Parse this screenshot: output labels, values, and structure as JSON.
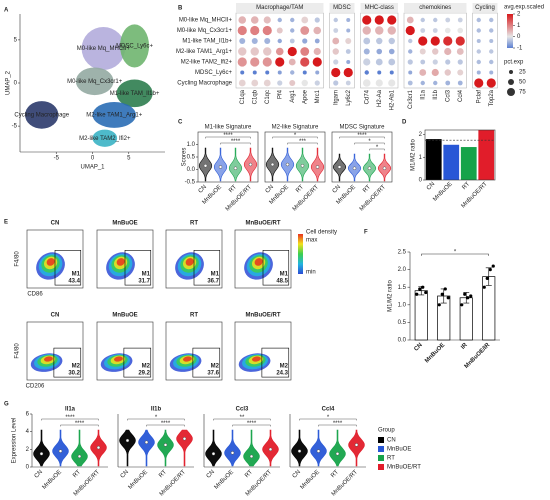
{
  "panel_labels": [
    "A",
    "B",
    "C",
    "D",
    "E",
    "F",
    "G"
  ],
  "group_legend": {
    "title": "Group",
    "names": [
      "CN",
      "MnBuOE",
      "RT",
      "MnBuOE/RT"
    ],
    "colors": [
      "#000000",
      "#2857d6",
      "#16a34a",
      "#e11d2a"
    ]
  },
  "chart_data": [
    {
      "type": "umap",
      "xlabel": "UMAP_1",
      "ylabel": "UMAP_2",
      "xlim": [
        -10,
        10
      ],
      "ylim": [
        -8,
        8
      ],
      "xticks": [
        -5,
        0,
        5
      ],
      "yticks": [
        -5,
        0,
        5
      ],
      "clusters": [
        {
          "name": "M0-like Mq_MHCII+",
          "color": "#b3acdc",
          "x": 1.5,
          "y": 4,
          "rx": 3,
          "ry": 2.5
        },
        {
          "name": "MDSC_Ly6c+",
          "color": "#6fb56f",
          "x": 5.8,
          "y": 4.3,
          "rx": 2,
          "ry": 2.5
        },
        {
          "name": "M0-like Mq_Cx3cr1+",
          "color": "#93aaa2",
          "x": 0.3,
          "y": 0.2,
          "rx": 2.6,
          "ry": 1.6
        },
        {
          "name": "M1-like TAM_Il1b+",
          "color": "#2e7d4f",
          "x": 5.8,
          "y": -1.2,
          "rx": 2.5,
          "ry": 1.6
        },
        {
          "name": "M2-like TAM1_Arg1+",
          "color": "#2a6db5",
          "x": 3,
          "y": -3.7,
          "rx": 3,
          "ry": 1.5
        },
        {
          "name": "M2-like TAM2_Ifi2+",
          "color": "#3bb3c4",
          "x": 1.7,
          "y": -6.4,
          "rx": 1.7,
          "ry": 1
        },
        {
          "name": "Cycling Macrophage",
          "color": "#2b3a6b",
          "x": -7,
          "y": -3.7,
          "rx": 2.3,
          "ry": 1.6
        }
      ]
    },
    {
      "type": "dotplot",
      "rows": [
        "M0-like Mq_MHCII+",
        "M0-like Mq_Cx3cr1+",
        "M1-like TAM_Il1b+",
        "M2-like TAM1_Arg1+",
        "M2-like TAM2_Ifi2+",
        "MDSC_Ly6c+",
        "Cycling Macrophage"
      ],
      "groups": [
        {
          "name": "Macrophage/TAM",
          "genes": [
            "C1qa",
            "C1qb",
            "C1qc",
            "Pf4",
            "Arg1",
            "Apoe",
            "Mrc1"
          ]
        },
        {
          "name": "MDSC",
          "genes": [
            "Itgam",
            "Ly6c2"
          ]
        },
        {
          "name": "MHC-class",
          "genes": [
            "Cd74",
            "H2-Aa",
            "H2-Ab1"
          ]
        },
        {
          "name": "chemokines",
          "genes": [
            "Cx3cr1",
            "Il1a",
            "Il1b",
            "Ccl3",
            "Ccl4"
          ]
        },
        {
          "name": "Cycling",
          "genes": [
            "Pclaf",
            "Top2a"
          ]
        }
      ],
      "values": [
        [
          0.5,
          0.5,
          0.4,
          -0.5,
          -0.5,
          0.2,
          -0.3,
          -0.3,
          -0.5,
          2,
          2,
          2,
          0.5,
          -0.3,
          -0.3,
          -0.2,
          -0.2,
          -0.4,
          -0.4
        ],
        [
          1,
          1,
          1,
          0.3,
          -0.5,
          0.8,
          0.5,
          -0.2,
          -0.5,
          0.5,
          0.5,
          0.5,
          2,
          -0.2,
          -0.2,
          0,
          0,
          -0.4,
          -0.4
        ],
        [
          -0.5,
          -0.5,
          -0.5,
          -0.6,
          -0.3,
          -0.6,
          -0.6,
          0.5,
          0.2,
          -0.3,
          -0.3,
          -0.3,
          -0.3,
          2,
          2,
          1.8,
          1.8,
          -0.4,
          -0.4
        ],
        [
          0.3,
          0.3,
          0.3,
          0.8,
          2,
          1,
          0.5,
          0.3,
          -0.3,
          -0.5,
          -0.6,
          -0.6,
          -0.5,
          0.2,
          0.3,
          0.5,
          0.4,
          -0.3,
          -0.3
        ],
        [
          0.8,
          0.8,
          0.8,
          2,
          0.5,
          1.5,
          2,
          -0.2,
          -0.6,
          -0.2,
          -0.3,
          -0.3,
          -0.3,
          -0.3,
          -0.2,
          -0.3,
          -0.3,
          -0.4,
          -0.4
        ],
        [
          -1,
          -1,
          -1,
          -0.7,
          -0.5,
          -1,
          -0.6,
          2,
          2,
          -1,
          -1,
          -1,
          -0.6,
          0.5,
          0.6,
          0.3,
          0.2,
          -0.5,
          -0.5
        ],
        [
          0.2,
          0.2,
          0.2,
          -0.2,
          0.3,
          0,
          -0.2,
          -0.3,
          -0.2,
          0,
          0,
          0,
          -0.4,
          -0.5,
          -0.5,
          -0.5,
          -0.5,
          2,
          2
        ]
      ],
      "pct": [
        [
          70,
          70,
          65,
          30,
          30,
          60,
          40,
          30,
          25,
          90,
          90,
          90,
          60,
          30,
          30,
          35,
          35,
          30,
          30
        ],
        [
          90,
          90,
          90,
          50,
          30,
          85,
          70,
          35,
          25,
          80,
          80,
          80,
          90,
          35,
          35,
          45,
          45,
          30,
          30
        ],
        [
          50,
          50,
          50,
          30,
          35,
          40,
          35,
          60,
          50,
          60,
          55,
          55,
          30,
          90,
          90,
          90,
          90,
          25,
          25
        ],
        [
          80,
          80,
          80,
          70,
          90,
          85,
          65,
          55,
          35,
          50,
          45,
          45,
          30,
          50,
          55,
          65,
          60,
          30,
          30
        ],
        [
          90,
          90,
          90,
          90,
          60,
          90,
          90,
          40,
          25,
          65,
          60,
          60,
          40,
          35,
          40,
          40,
          40,
          30,
          30
        ],
        [
          25,
          25,
          25,
          25,
          30,
          25,
          25,
          90,
          90,
          30,
          25,
          25,
          25,
          60,
          65,
          55,
          50,
          25,
          25
        ],
        [
          60,
          60,
          60,
          40,
          50,
          55,
          40,
          40,
          35,
          70,
          65,
          65,
          35,
          30,
          30,
          35,
          35,
          90,
          90
        ]
      ],
      "colorbar": {
        "title": "avg.exp.scaled",
        "lim": [
          -1,
          2
        ],
        "ticks": [
          2,
          1,
          0,
          -1
        ],
        "colors": [
          "#5b7fd1",
          "#e6e6e6",
          "#d7191c"
        ]
      },
      "size_legend": {
        "title": "pct.exp",
        "values": [
          25,
          50,
          75
        ]
      }
    },
    {
      "type": "violin",
      "title": "M1-like Signature",
      "ylabel": "Scores",
      "categories": [
        "CN",
        "MnBuOE",
        "RT",
        "MnBuOE/RT"
      ],
      "colors": [
        "#000000",
        "#2857d6",
        "#16a34a",
        "#e11d2a"
      ],
      "values": [
        0.15,
        0.1,
        0.05,
        0.2
      ],
      "ylim": [
        -0.5,
        1.5
      ],
      "yticks": [
        -0.5,
        {
          "value": 0,
          "label": "0.0"
        },
        0.5,
        {
          "value": 1,
          "label": "1.0"
        }
      ],
      "annotations": [
        "****",
        "****"
      ]
    },
    {
      "type": "violin",
      "title": "M2-like Signature",
      "categories": [
        "CN",
        "MnBuOE",
        "RT",
        "MnBuOE/RT"
      ],
      "colors": [
        "#000000",
        "#2857d6",
        "#16a34a",
        "#e11d2a"
      ],
      "values": [
        0.2,
        0.2,
        0.15,
        0.1
      ],
      "ylim": [
        -0.5,
        1.5
      ],
      "yticks": [
        -0.5,
        {
          "value": 0,
          "label": "0.0"
        },
        0.5,
        {
          "value": 1,
          "label": "1.0"
        }
      ],
      "annotations": [
        "*",
        "***"
      ]
    },
    {
      "type": "violin",
      "title": "MDSC Signature",
      "categories": [
        "CN",
        "MnBuOE",
        "RT",
        "MnBuOE/RT"
      ],
      "colors": [
        "#000000",
        "#2857d6",
        "#16a34a",
        "#e11d2a"
      ],
      "values": [
        0.1,
        0.05,
        0.05,
        0.05
      ],
      "ylim": [
        -0.5,
        1.5
      ],
      "yticks": [
        -0.5,
        {
          "value": 0,
          "label": "0.0"
        },
        0.5,
        {
          "value": 1,
          "label": "1.0"
        }
      ],
      "annotations": [
        "****",
        "*",
        "*"
      ]
    },
    {
      "type": "bar",
      "ylabel": "M1/M2 ratio",
      "categories": [
        "CN",
        "MnBuOE",
        "RT",
        "MnBuOE/RT"
      ],
      "colors": [
        "#000000",
        "#2857d6",
        "#16a34a",
        "#e11d2a"
      ],
      "values": [
        1.8,
        1.55,
        1.45,
        2.2
      ],
      "ref_line": 1.75,
      "ylim": [
        0,
        2.2
      ],
      "yticks": [
        0,
        1,
        2
      ]
    },
    {
      "type": "flow",
      "colorbar": {
        "title": "Cell density",
        "max": "max",
        "min": "min"
      },
      "rows": [
        {
          "xlabel": "CD86",
          "ylabel": "F4/80",
          "titles": [
            "CN",
            "MnBuOE",
            "RT",
            "MnBuOE/RT"
          ],
          "gate": "M1",
          "values": [
            43.4,
            31.7,
            36.7,
            48.5
          ]
        },
        {
          "xlabel": "CD206",
          "ylabel": "F4/80",
          "titles": [
            "CN",
            "MnBuOE",
            "RT",
            "MnBuOE/RT"
          ],
          "gate": "M2",
          "values": [
            30.2,
            29.2,
            37.6,
            24.3
          ]
        }
      ]
    },
    {
      "type": "bar_dot",
      "ylabel": "M1/M2 ratio",
      "categories": [
        "CN",
        "MnBuOE",
        "IR",
        "MnBuOE/IR"
      ],
      "values": [
        1.4,
        1.25,
        1.2,
        1.8
      ],
      "errors": [
        0.12,
        0.2,
        0.15,
        0.25
      ],
      "points": [
        [
          1.3,
          1.45,
          1.5,
          1.35
        ],
        [
          1.0,
          1.3,
          1.45,
          1.2
        ],
        [
          1.0,
          1.3,
          1.2,
          1.25
        ],
        [
          1.5,
          1.75,
          2.0,
          2.1
        ]
      ],
      "ylim": [
        0,
        2.5
      ],
      "yticks": [
        {
          "value": 0,
          "label": "0.0"
        },
        0.5,
        {
          "value": 1,
          "label": "1.0"
        },
        1.5,
        {
          "value": 2,
          "label": "2.0"
        },
        2.5
      ],
      "annotations": [
        "*"
      ]
    },
    {
      "type": "violin",
      "title": "Il1a",
      "ylabel": "Expression Level",
      "categories": [
        "CN",
        "MnBuOE",
        "RT",
        "MnBuOE/RT"
      ],
      "colors": [
        "#000000",
        "#2857d6",
        "#16a34a",
        "#e11d2a"
      ],
      "values": [
        1.5,
        1.8,
        1.2,
        2.2
      ],
      "ylim": [
        0,
        6
      ],
      "yticks": [
        0,
        2,
        4,
        6
      ],
      "annotations": [
        "****",
        "****"
      ]
    },
    {
      "type": "violin",
      "title": "Il1b",
      "categories": [
        "CN",
        "MnBuOE",
        "RT",
        "MnBuOE/RT"
      ],
      "colors": [
        "#000000",
        "#2857d6",
        "#16a34a",
        "#e11d2a"
      ],
      "values": [
        3,
        2.8,
        2.5,
        3.2
      ],
      "ylim": [
        0,
        6
      ],
      "yticks": [
        0,
        2,
        4,
        6
      ],
      "annotations": [
        "*",
        "****"
      ]
    },
    {
      "type": "violin",
      "title": "Ccl3",
      "categories": [
        "CN",
        "MnBuOE",
        "RT",
        "MnBuOE/RT"
      ],
      "colors": [
        "#000000",
        "#2857d6",
        "#16a34a",
        "#e11d2a"
      ],
      "values": [
        1.5,
        1.6,
        1.2,
        2
      ],
      "ylim": [
        0,
        6
      ],
      "yticks": [
        0,
        2,
        4,
        6
      ],
      "annotations": [
        "**",
        "****"
      ]
    },
    {
      "type": "violin",
      "title": "Ccl4",
      "categories": [
        "CN",
        "MnBuOE",
        "RT",
        "MnBuOE/RT"
      ],
      "colors": [
        "#000000",
        "#2857d6",
        "#16a34a",
        "#e11d2a"
      ],
      "values": [
        1.8,
        1.8,
        1.5,
        2.5
      ],
      "ylim": [
        0,
        6
      ],
      "yticks": [
        0,
        2,
        4,
        6
      ],
      "annotations": [
        "*",
        "****"
      ]
    }
  ]
}
